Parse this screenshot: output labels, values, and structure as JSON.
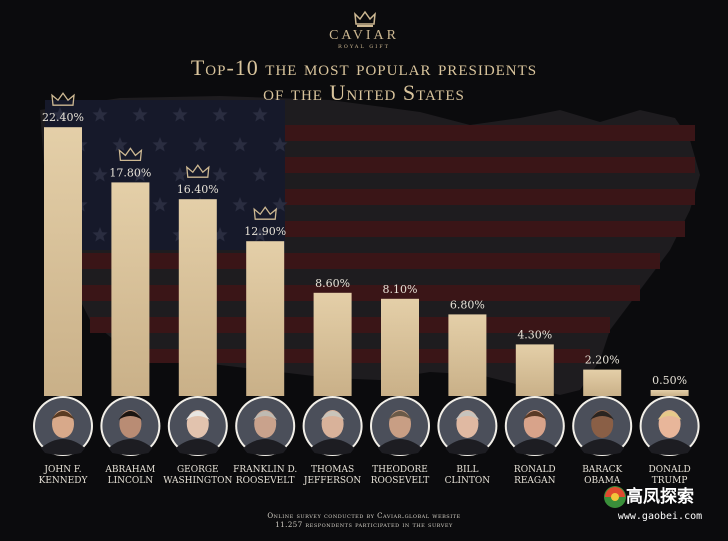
{
  "brand": {
    "name": "CAVIAR",
    "sub": "ROYAL GIFT"
  },
  "title_line1": "Top-10 the most popular presidents",
  "title_line2": "of the United States",
  "footer_line1": "Online survey conducted by Caviar.global website",
  "footer_line2": "11.257 respondents participated in the survey",
  "watermark": {
    "text": "高凤探索",
    "url": "www.gaobei.com"
  },
  "colors": {
    "bar": "#e4cfa8",
    "gold": "#cdb892",
    "text": "#e6e1d6",
    "background": "#0b0b0d"
  },
  "icons": [
    "crown-icon",
    "us-flag-map-icon",
    "president-portrait-icon"
  ],
  "chart_data": {
    "type": "bar",
    "title": "Top-10 the most popular presidents of the United States",
    "ylim": [
      0,
      25
    ],
    "grid": false,
    "legend": "none",
    "categories": [
      [
        "John F.",
        "Kennedy"
      ],
      [
        "Abraham",
        "Lincoln"
      ],
      [
        "George",
        "Washington"
      ],
      [
        "Franklin D.",
        "Roosevelt"
      ],
      [
        "Thomas",
        "Jefferson"
      ],
      [
        "Theodore",
        "Roosevelt"
      ],
      [
        "Bill",
        "Clinton"
      ],
      [
        "Ronald",
        "Reagan"
      ],
      [
        "Barack",
        "Obama"
      ],
      [
        "Donald",
        "Trump"
      ]
    ],
    "values": [
      22.4,
      17.8,
      16.4,
      12.9,
      8.6,
      8.1,
      6.8,
      4.3,
      2.2,
      0.5
    ],
    "labels": [
      "22.40%",
      "17.80%",
      "16.40%",
      "12.90%",
      "8.60%",
      "8.10%",
      "6.80%",
      "4.30%",
      "2.20%",
      "0.50%"
    ],
    "crowned": [
      true,
      true,
      true,
      true,
      false,
      false,
      false,
      false,
      false,
      false
    ]
  }
}
